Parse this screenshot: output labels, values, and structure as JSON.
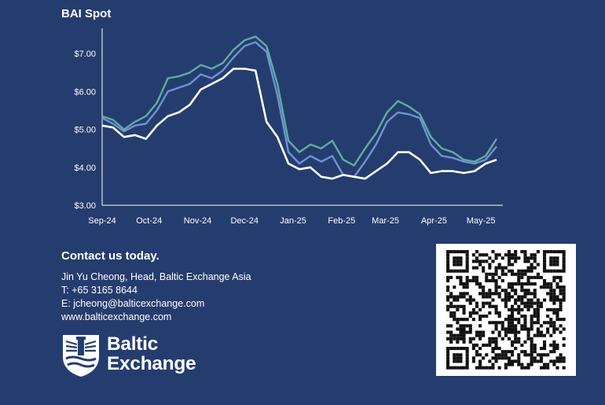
{
  "chart_data": {
    "type": "line",
    "title": "BAI Spot",
    "xlabel": "",
    "ylabel": "",
    "ylim": [
      3.0,
      7.5
    ],
    "yticks": [
      "$3.00",
      "$4.00",
      "$5.00",
      "$6.00",
      "$7.00"
    ],
    "ytick_values": [
      3,
      4,
      5,
      6,
      7
    ],
    "x_tick_labels": [
      "Sep-24",
      "Oct-24",
      "Nov-24",
      "Dec-24",
      "Jan-25",
      "Feb-25",
      "Mar-25",
      "Apr-25",
      "May-25"
    ],
    "x_range": [
      "2024-09-01",
      "2025-05-15"
    ],
    "grid": false,
    "series": [
      {
        "color": "#5fae9e",
        "points": [
          [
            "2024-09-01",
            5.35
          ],
          [
            "2024-09-08",
            5.25
          ],
          [
            "2024-09-15",
            5.0
          ],
          [
            "2024-09-22",
            5.2
          ],
          [
            "2024-09-29",
            5.35
          ],
          [
            "2024-10-06",
            5.7
          ],
          [
            "2024-10-13",
            6.35
          ],
          [
            "2024-10-20",
            6.4
          ],
          [
            "2024-10-27",
            6.5
          ],
          [
            "2024-11-03",
            6.7
          ],
          [
            "2024-11-10",
            6.6
          ],
          [
            "2024-11-17",
            6.75
          ],
          [
            "2024-11-24",
            7.1
          ],
          [
            "2024-12-01",
            7.35
          ],
          [
            "2024-12-08",
            7.45
          ],
          [
            "2024-12-15",
            7.2
          ],
          [
            "2024-12-22",
            6.2
          ],
          [
            "2024-12-29",
            4.7
          ],
          [
            "2025-01-05",
            4.4
          ],
          [
            "2025-01-12",
            4.6
          ],
          [
            "2025-01-19",
            4.5
          ],
          [
            "2025-01-26",
            4.7
          ],
          [
            "2025-02-02",
            4.2
          ],
          [
            "2025-02-09",
            4.05
          ],
          [
            "2025-02-16",
            4.5
          ],
          [
            "2025-02-23",
            4.9
          ],
          [
            "2025-03-02",
            5.45
          ],
          [
            "2025-03-09",
            5.75
          ],
          [
            "2025-03-16",
            5.6
          ],
          [
            "2025-03-23",
            5.4
          ],
          [
            "2025-03-30",
            4.8
          ],
          [
            "2025-04-06",
            4.5
          ],
          [
            "2025-04-13",
            4.4
          ],
          [
            "2025-04-20",
            4.2
          ],
          [
            "2025-04-27",
            4.15
          ],
          [
            "2025-05-04",
            4.3
          ],
          [
            "2025-05-11",
            4.75
          ]
        ]
      },
      {
        "color": "#6e93d6",
        "points": [
          [
            "2024-09-01",
            5.3
          ],
          [
            "2024-09-08",
            5.15
          ],
          [
            "2024-09-15",
            4.95
          ],
          [
            "2024-09-22",
            5.1
          ],
          [
            "2024-09-29",
            5.15
          ],
          [
            "2024-10-06",
            5.5
          ],
          [
            "2024-10-13",
            6.0
          ],
          [
            "2024-10-20",
            6.1
          ],
          [
            "2024-10-27",
            6.2
          ],
          [
            "2024-11-03",
            6.45
          ],
          [
            "2024-11-10",
            6.35
          ],
          [
            "2024-11-17",
            6.55
          ],
          [
            "2024-11-24",
            6.9
          ],
          [
            "2024-12-01",
            7.2
          ],
          [
            "2024-12-08",
            7.3
          ],
          [
            "2024-12-15",
            7.05
          ],
          [
            "2024-12-22",
            5.9
          ],
          [
            "2024-12-29",
            4.4
          ],
          [
            "2025-01-05",
            4.1
          ],
          [
            "2025-01-12",
            4.3
          ],
          [
            "2025-01-19",
            4.15
          ],
          [
            "2025-01-26",
            4.3
          ],
          [
            "2025-02-02",
            3.8
          ],
          [
            "2025-02-09",
            3.75
          ],
          [
            "2025-02-16",
            4.15
          ],
          [
            "2025-02-23",
            4.6
          ],
          [
            "2025-03-02",
            5.2
          ],
          [
            "2025-03-09",
            5.45
          ],
          [
            "2025-03-16",
            5.4
          ],
          [
            "2025-03-23",
            5.3
          ],
          [
            "2025-03-30",
            4.6
          ],
          [
            "2025-04-06",
            4.3
          ],
          [
            "2025-04-13",
            4.25
          ],
          [
            "2025-04-20",
            4.15
          ],
          [
            "2025-04-27",
            4.1
          ],
          [
            "2025-05-04",
            4.2
          ],
          [
            "2025-05-11",
            4.55
          ]
        ]
      },
      {
        "color": "#ffffff",
        "points": [
          [
            "2024-09-01",
            5.1
          ],
          [
            "2024-09-08",
            5.05
          ],
          [
            "2024-09-15",
            4.8
          ],
          [
            "2024-09-22",
            4.85
          ],
          [
            "2024-09-29",
            4.75
          ],
          [
            "2024-10-06",
            5.1
          ],
          [
            "2024-10-13",
            5.35
          ],
          [
            "2024-10-20",
            5.45
          ],
          [
            "2024-10-27",
            5.65
          ],
          [
            "2024-11-03",
            6.05
          ],
          [
            "2024-11-10",
            6.2
          ],
          [
            "2024-11-17",
            6.35
          ],
          [
            "2024-11-24",
            6.6
          ],
          [
            "2024-12-01",
            6.6
          ],
          [
            "2024-12-08",
            6.55
          ],
          [
            "2024-12-15",
            5.2
          ],
          [
            "2024-12-22",
            4.8
          ],
          [
            "2024-12-29",
            4.1
          ],
          [
            "2025-01-05",
            3.95
          ],
          [
            "2025-01-12",
            4.0
          ],
          [
            "2025-01-19",
            3.75
          ],
          [
            "2025-01-26",
            3.7
          ],
          [
            "2025-02-02",
            3.8
          ],
          [
            "2025-02-09",
            3.75
          ],
          [
            "2025-02-16",
            3.7
          ],
          [
            "2025-02-23",
            3.9
          ],
          [
            "2025-03-02",
            4.1
          ],
          [
            "2025-03-09",
            4.4
          ],
          [
            "2025-03-16",
            4.4
          ],
          [
            "2025-03-23",
            4.2
          ],
          [
            "2025-03-30",
            3.85
          ],
          [
            "2025-04-06",
            3.9
          ],
          [
            "2025-04-13",
            3.9
          ],
          [
            "2025-04-20",
            3.85
          ],
          [
            "2025-04-27",
            3.9
          ],
          [
            "2025-05-04",
            4.1
          ],
          [
            "2025-05-11",
            4.2
          ]
        ]
      }
    ]
  },
  "contact": {
    "heading": "Contact us today.",
    "name_line": "Jin Yu Cheong, Head, Baltic Exchange Asia",
    "phone_line": "T: +65 3165 8644",
    "email_line": "E:  jcheong@balticexchange.com",
    "website": "www.balticexchange.com"
  },
  "logo": {
    "line1": "Baltic",
    "line2": "Exchange"
  }
}
